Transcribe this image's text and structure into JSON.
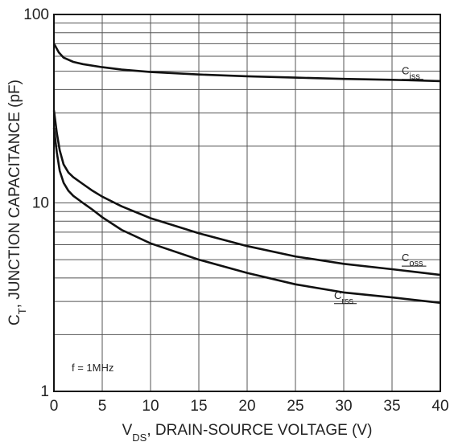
{
  "chart_data": {
    "type": "line",
    "x_axis": {
      "title_main": "V",
      "title_sub": "DS",
      "title_rest": ", DRAIN-SOURCE VOLTAGE (V)",
      "range": [
        0,
        40
      ],
      "ticks": [
        0,
        5,
        10,
        15,
        20,
        25,
        30,
        35,
        40
      ],
      "tick_labels": [
        "0",
        "5",
        "10",
        "15",
        "20",
        "25",
        "30",
        "35",
        "40"
      ]
    },
    "y_axis": {
      "title_main": "C",
      "title_sub": "T",
      "title_rest": ", JUNCTION CAPACITANCE (pF)",
      "scale": "log",
      "range": [
        1,
        100
      ],
      "ticks": [
        1,
        10,
        100
      ],
      "tick_labels": [
        "1",
        "10",
        "100"
      ]
    },
    "grid": true,
    "annotation": "f = 1MHz",
    "series": [
      {
        "name_main": "C",
        "name_sub": "iss",
        "label_at": [
          36,
          48
        ],
        "x": [
          0,
          0.5,
          1,
          2,
          3,
          5,
          7,
          10,
          15,
          20,
          25,
          30,
          35,
          40
        ],
        "y": [
          70,
          63,
          59,
          56,
          54.5,
          52.5,
          51,
          49.5,
          48,
          47,
          46.2,
          45.5,
          45,
          44.3
        ]
      },
      {
        "name_main": "C",
        "name_sub": "oss",
        "label_at": [
          36,
          4.9
        ],
        "x": [
          0,
          0.3,
          0.6,
          1,
          1.5,
          2,
          3,
          4,
          5,
          7,
          10,
          15,
          20,
          25,
          30,
          35,
          40
        ],
        "y": [
          31,
          23.5,
          19,
          16,
          14.5,
          13.7,
          12.6,
          11.6,
          10.8,
          9.6,
          8.3,
          6.9,
          5.9,
          5.2,
          4.75,
          4.45,
          4.15
        ]
      },
      {
        "name_main": "C",
        "name_sub": "rss",
        "label_at": [
          29,
          3.1
        ],
        "x": [
          0,
          0.3,
          0.6,
          1,
          1.5,
          2,
          3,
          4,
          5,
          7,
          10,
          15,
          20,
          25,
          30,
          35,
          40
        ],
        "y": [
          25,
          18.5,
          14.8,
          12.8,
          11.6,
          10.9,
          10.0,
          9.2,
          8.4,
          7.2,
          6.1,
          5.0,
          4.25,
          3.7,
          3.35,
          3.15,
          2.95
        ]
      }
    ]
  }
}
